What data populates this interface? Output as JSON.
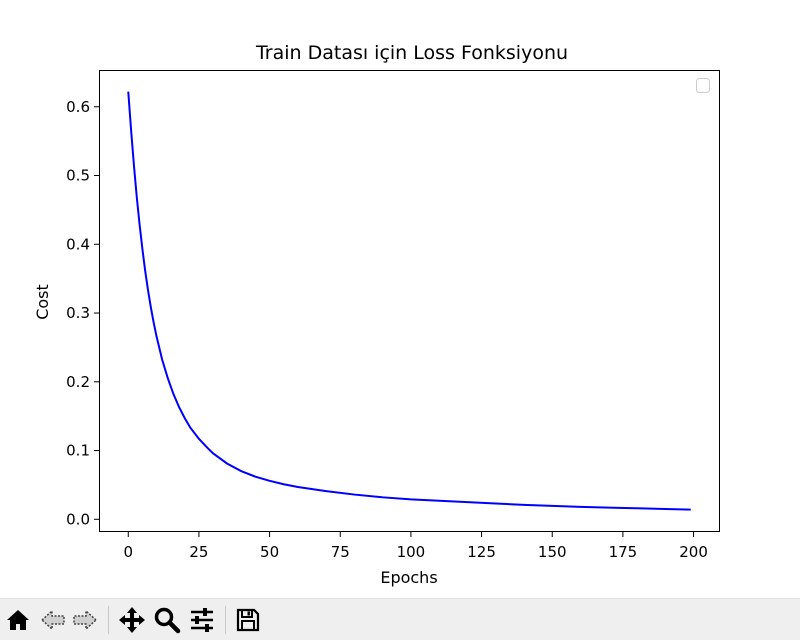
{
  "chart_data": {
    "type": "line",
    "title": "Train Datası için Loss Fonksiyonu",
    "xlabel": "Epochs",
    "ylabel": "Cost",
    "xlim": [
      -10,
      209
    ],
    "ylim": [
      -0.017,
      0.652
    ],
    "xticks": [
      0,
      25,
      50,
      75,
      100,
      125,
      150,
      175,
      200
    ],
    "yticks": [
      0.0,
      0.1,
      0.2,
      0.3,
      0.4,
      0.5,
      0.6
    ],
    "grid": false,
    "legend": "top-right, empty",
    "series": [
      {
        "color": "#0000ff",
        "x": [
          0,
          1,
          2,
          3,
          4,
          5,
          6,
          7,
          8,
          9,
          10,
          12,
          14,
          16,
          18,
          20,
          22,
          25,
          28,
          30,
          35,
          40,
          45,
          50,
          55,
          60,
          70,
          80,
          90,
          100,
          110,
          120,
          130,
          140,
          150,
          160,
          170,
          180,
          190,
          199
        ],
        "y": [
          0.622,
          0.566,
          0.515,
          0.469,
          0.429,
          0.393,
          0.361,
          0.333,
          0.308,
          0.286,
          0.266,
          0.232,
          0.205,
          0.182,
          0.163,
          0.147,
          0.133,
          0.117,
          0.104,
          0.096,
          0.081,
          0.07,
          0.062,
          0.056,
          0.051,
          0.047,
          0.041,
          0.036,
          0.032,
          0.029,
          0.027,
          0.025,
          0.023,
          0.021,
          0.0195,
          0.018,
          0.017,
          0.016,
          0.015,
          0.014
        ]
      }
    ]
  },
  "toolbar": {
    "buttons": [
      "home-icon",
      "back-icon",
      "forward-icon",
      "pan-icon",
      "zoom-icon",
      "configure-subplots-icon",
      "save-icon"
    ]
  }
}
